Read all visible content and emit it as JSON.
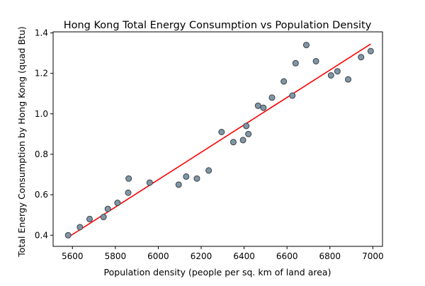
{
  "chart_data": {
    "type": "scatter",
    "title": "Hong Kong Total Energy Consumption vs Population Density",
    "xlabel": "Population density (people per sq. km of land area)",
    "ylabel": "Total Energy Consumption by Hong Kong (quad Btu)",
    "xlim": [
      5510,
      7045
    ],
    "ylim": [
      0.345,
      1.405
    ],
    "xticks": [
      5600,
      5800,
      6000,
      6200,
      6400,
      6600,
      6800,
      7000
    ],
    "yticks": [
      0.4,
      0.6,
      0.8,
      1.0,
      1.2,
      1.4
    ],
    "xtick_labels": [
      "5600",
      "5800",
      "6000",
      "6200",
      "6400",
      "6600",
      "6800",
      "7000"
    ],
    "ytick_labels": [
      "0.4",
      "0.6",
      "0.8",
      "1.0",
      "1.2",
      "1.4"
    ],
    "grid": false,
    "legend": "none",
    "colors": {
      "point_fill": "#7f96a6",
      "point_edge": "#3a4048",
      "trend_line": "#ff0000",
      "axis": "#000000"
    },
    "points": [
      {
        "x": 5580,
        "y": 0.4
      },
      {
        "x": 5635,
        "y": 0.44
      },
      {
        "x": 5680,
        "y": 0.48
      },
      {
        "x": 5745,
        "y": 0.49
      },
      {
        "x": 5765,
        "y": 0.53
      },
      {
        "x": 5810,
        "y": 0.56
      },
      {
        "x": 5860,
        "y": 0.61
      },
      {
        "x": 5862,
        "y": 0.68
      },
      {
        "x": 5960,
        "y": 0.66
      },
      {
        "x": 6095,
        "y": 0.65
      },
      {
        "x": 6130,
        "y": 0.69
      },
      {
        "x": 6180,
        "y": 0.68
      },
      {
        "x": 6235,
        "y": 0.72
      },
      {
        "x": 6295,
        "y": 0.91
      },
      {
        "x": 6350,
        "y": 0.86
      },
      {
        "x": 6395,
        "y": 0.87
      },
      {
        "x": 6410,
        "y": 0.94
      },
      {
        "x": 6420,
        "y": 0.9
      },
      {
        "x": 6465,
        "y": 1.04
      },
      {
        "x": 6490,
        "y": 1.03
      },
      {
        "x": 6530,
        "y": 1.08
      },
      {
        "x": 6585,
        "y": 1.16
      },
      {
        "x": 6625,
        "y": 1.09
      },
      {
        "x": 6640,
        "y": 1.25
      },
      {
        "x": 6690,
        "y": 1.34
      },
      {
        "x": 6735,
        "y": 1.26
      },
      {
        "x": 6805,
        "y": 1.19
      },
      {
        "x": 6835,
        "y": 1.21
      },
      {
        "x": 6885,
        "y": 1.17
      },
      {
        "x": 6945,
        "y": 1.28
      },
      {
        "x": 6990,
        "y": 1.31
      }
    ],
    "trendline": {
      "type": "linear",
      "x": [
        5580,
        6990
      ],
      "y": [
        0.39,
        1.345
      ]
    }
  }
}
